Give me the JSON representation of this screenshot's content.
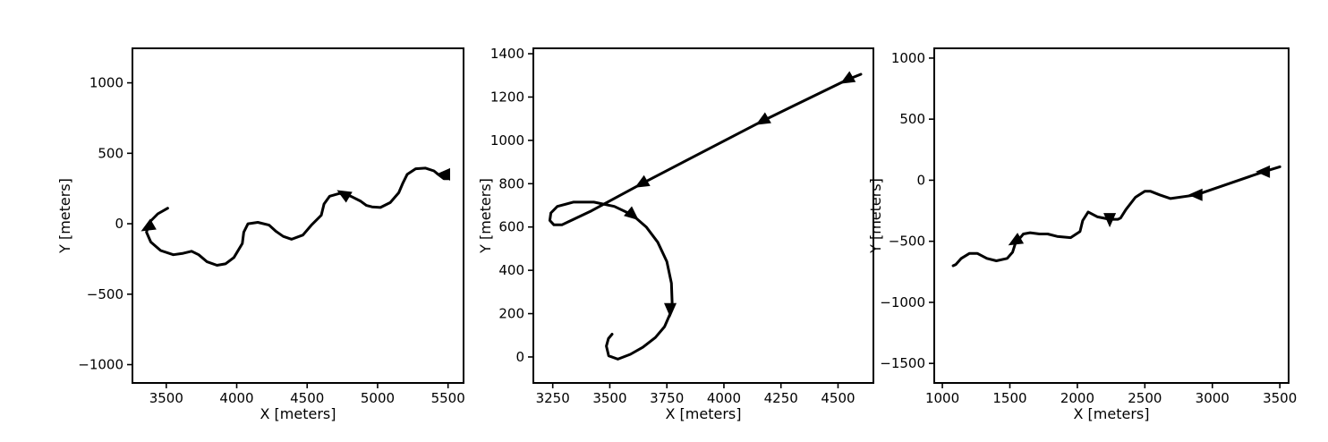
{
  "chart_data": [
    {
      "type": "line",
      "xlabel": "X [meters]",
      "ylabel": "Y [meters]",
      "xlim": [
        3260,
        5610
      ],
      "ylim": [
        -1130,
        1245
      ],
      "xticks": [
        3500,
        4000,
        4500,
        5000,
        5500
      ],
      "yticks": [
        -1000,
        -500,
        0,
        500,
        1000
      ],
      "xtick_labels": [
        "3500",
        "4000",
        "4500",
        "5000",
        "5500"
      ],
      "ytick_labels": [
        "−1000",
        "−500",
        "0",
        "500",
        "1000"
      ],
      "series": [
        {
          "x": [
            3510,
            3440,
            3380,
            3360,
            3390,
            3460,
            3550,
            3620,
            3680,
            3730,
            3790,
            3860,
            3920,
            3980,
            4040,
            4050,
            4080,
            4150,
            4230,
            4280,
            4330,
            4390,
            4470,
            4530,
            4600,
            4620,
            4660,
            4730,
            4810,
            4880,
            4920,
            4960,
            5020,
            5090,
            5150,
            5180,
            5210,
            5270,
            5340,
            5400,
            5430,
            5470,
            5500
          ],
          "y": [
            110,
            70,
            10,
            -60,
            -130,
            -190,
            -220,
            -210,
            -195,
            -220,
            -270,
            -295,
            -285,
            -240,
            -140,
            -60,
            0,
            10,
            -10,
            -55,
            -90,
            -110,
            -80,
            -10,
            60,
            140,
            195,
            215,
            195,
            160,
            130,
            120,
            115,
            150,
            220,
            290,
            350,
            390,
            395,
            375,
            350,
            320,
            320
          ]
        }
      ],
      "arrows": [
        {
          "x": 3370,
          "y": -25,
          "direction": "down-left"
        },
        {
          "x": 4760,
          "y": 210,
          "direction": "up-left"
        },
        {
          "x": 5470,
          "y": 350,
          "direction": "left"
        }
      ]
    },
    {
      "type": "line",
      "xlabel": "X [meters]",
      "ylabel": "Y [meters]",
      "xlim": [
        3165,
        4655
      ],
      "ylim": [
        -120,
        1425
      ],
      "xticks": [
        3250,
        3500,
        3750,
        4000,
        4250,
        4500
      ],
      "yticks": [
        0,
        200,
        400,
        600,
        800,
        1000,
        1200,
        1400
      ],
      "xtick_labels": [
        "3250",
        "3500",
        "3750",
        "4000",
        "4250",
        "4500"
      ],
      "ytick_labels": [
        "0",
        "200",
        "400",
        "600",
        "800",
        "1000",
        "1200",
        "1400"
      ],
      "series": [
        {
          "x": [
            4600,
            4540,
            4170,
            3640,
            3420,
            3290,
            3255,
            3237,
            3242,
            3270,
            3340,
            3430,
            3520,
            3600,
            3660,
            3710,
            3750,
            3770,
            3773,
            3765,
            3740,
            3700,
            3645,
            3590,
            3535,
            3495,
            3485,
            3494,
            3510
          ],
          "y": [
            1305,
            1280,
            1090,
            800,
            675,
            610,
            610,
            630,
            665,
            695,
            715,
            715,
            695,
            655,
            600,
            530,
            440,
            340,
            250,
            200,
            140,
            90,
            45,
            12,
            -10,
            5,
            50,
            85,
            105
          ]
        }
      ],
      "arrows": [
        {
          "x": 4540,
          "y": 1280,
          "direction": "down-left"
        },
        {
          "x": 4170,
          "y": 1090,
          "direction": "down-left"
        },
        {
          "x": 3640,
          "y": 800,
          "direction": "down-left"
        },
        {
          "x": 3600,
          "y": 655,
          "direction": "down-right"
        },
        {
          "x": 3765,
          "y": 220,
          "direction": "down"
        }
      ]
    },
    {
      "type": "line",
      "xlabel": "X [meters]",
      "ylabel": "Y [meters]",
      "xlim": [
        940,
        3565
      ],
      "ylim": [
        -1660,
        1080
      ],
      "xticks": [
        1000,
        1500,
        2000,
        2500,
        3000,
        3500
      ],
      "yticks": [
        -1500,
        -1000,
        -500,
        0,
        500,
        1000
      ],
      "xtick_labels": [
        "1000",
        "1500",
        "2000",
        "2500",
        "3000",
        "3500"
      ],
      "ytick_labels": [
        "−1500",
        "−1000",
        "−500",
        "0",
        "500",
        "1000"
      ],
      "series": [
        {
          "x": [
            3500,
            3380,
            2880,
            2690,
            2610,
            2540,
            2500,
            2430,
            2360,
            2320,
            2300,
            2240,
            2150,
            2080,
            2040,
            2020,
            1950,
            1850,
            1780,
            1720,
            1650,
            1600,
            1540,
            1520,
            1480,
            1400,
            1330,
            1260,
            1200,
            1140,
            1100,
            1080
          ],
          "y": [
            110,
            70,
            -120,
            -150,
            -120,
            -90,
            -90,
            -140,
            -240,
            -310,
            -320,
            -320,
            -300,
            -260,
            -330,
            -420,
            -470,
            -460,
            -440,
            -440,
            -430,
            -440,
            -520,
            -590,
            -640,
            -660,
            -640,
            -600,
            -600,
            -640,
            -690,
            -700
          ]
        }
      ],
      "arrows": [
        {
          "x": 3380,
          "y": 70,
          "direction": "left"
        },
        {
          "x": 2880,
          "y": -120,
          "direction": "left"
        },
        {
          "x": 2240,
          "y": -320,
          "direction": "down"
        },
        {
          "x": 1540,
          "y": -500,
          "direction": "down-left"
        }
      ]
    }
  ]
}
